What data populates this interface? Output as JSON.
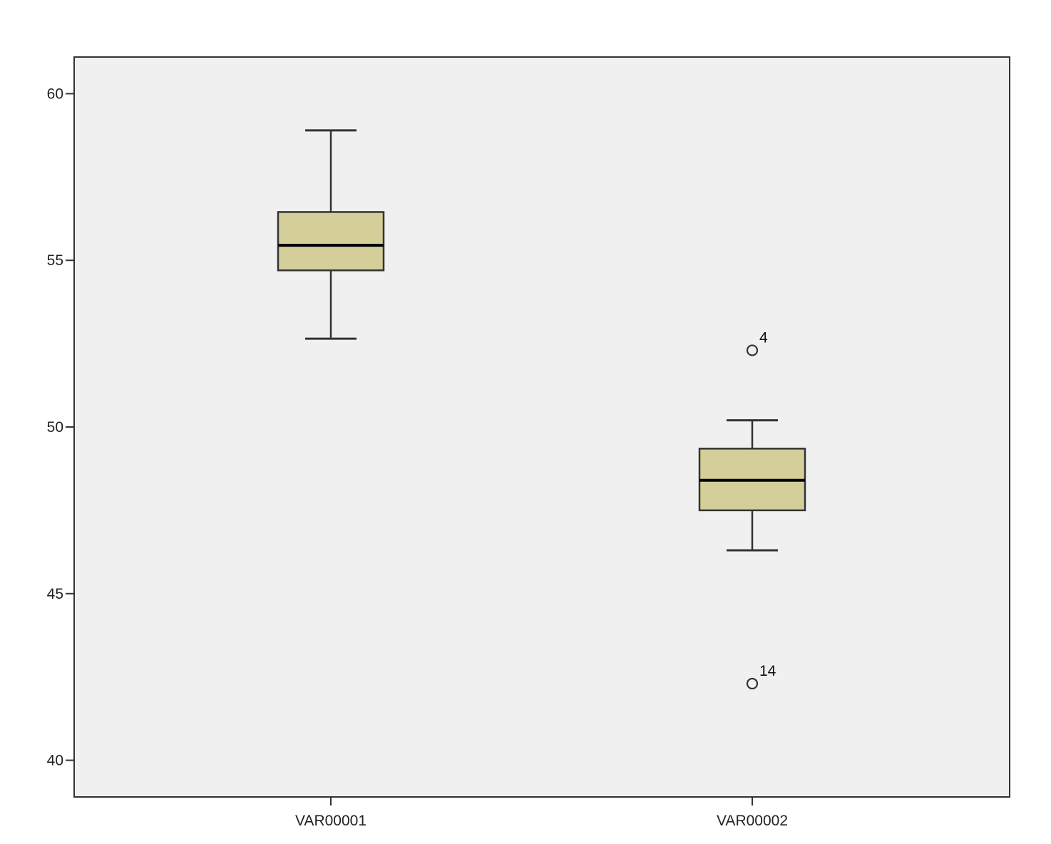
{
  "chart_data": {
    "type": "boxplot",
    "title": "",
    "xlabel": "",
    "ylabel": "",
    "ylim": [
      38.9,
      61.1
    ],
    "yticks": [
      40,
      45,
      50,
      55,
      60
    ],
    "ytick_labels": [
      "40",
      "45",
      "50",
      "55",
      "60"
    ],
    "grid": false,
    "legend": "none",
    "colors": {
      "plot_background": "#f0f0f0",
      "box_fill": "#d4cf98",
      "box_stroke": "#333333",
      "median": "#000000",
      "whisker": "#333333",
      "outlier": "#333333",
      "page_background": "#ffffff"
    },
    "categories": [
      "VAR00001",
      "VAR00002"
    ],
    "boxes": [
      {
        "category": "VAR00001",
        "whisker_low": 52.65,
        "q1": 54.7,
        "median": 55.45,
        "q3": 56.45,
        "whisker_high": 58.9,
        "outliers": []
      },
      {
        "category": "VAR00002",
        "whisker_low": 46.3,
        "q1": 47.5,
        "median": 48.4,
        "q3": 49.35,
        "whisker_high": 50.2,
        "outliers": [
          {
            "value": 52.3,
            "label": "4"
          },
          {
            "value": 42.3,
            "label": "14"
          }
        ]
      }
    ]
  }
}
